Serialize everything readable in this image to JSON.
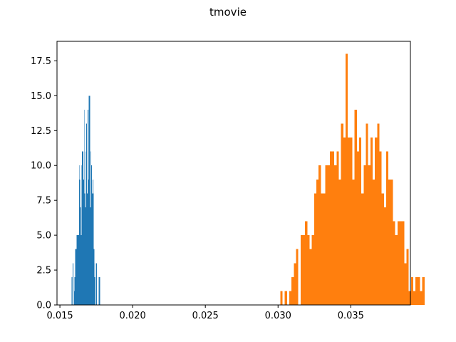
{
  "chart_data": {
    "type": "histogram",
    "title": "tmovie",
    "xlabel": "",
    "ylabel": "",
    "xlim": [
      0.0148,
      0.0391
    ],
    "ylim": [
      0,
      18.9
    ],
    "x_ticks": [
      0.015,
      0.02,
      0.025,
      0.03,
      0.035
    ],
    "x_tick_labels": [
      "0.015",
      "0.020",
      "0.025",
      "0.030",
      "0.035"
    ],
    "y_ticks": [
      0,
      2.5,
      5,
      7.5,
      10,
      12.5,
      15,
      17.5
    ],
    "y_tick_labels": [
      "0.0",
      "2.5",
      "5.0",
      "7.5",
      "10.0",
      "12.5",
      "15.0",
      "17.5"
    ],
    "grid": false,
    "legend": "none",
    "series": [
      {
        "color": "#1f77b4",
        "bin_start": 0.0158,
        "bin_width": 4.25e-05,
        "counts": [
          2,
          0,
          3,
          0,
          1,
          2,
          4,
          4,
          5,
          5,
          5,
          5,
          10,
          9,
          7,
          5,
          10,
          11,
          11,
          9,
          14,
          8,
          7,
          11,
          13,
          8,
          14,
          9,
          15,
          15,
          7,
          11,
          10,
          8,
          9,
          8,
          4,
          2,
          3,
          0,
          3,
          0,
          0,
          0,
          2,
          2
        ]
      },
      {
        "color": "#ff7f0e",
        "bin_start": 0.03015,
        "bin_width": 0.000155,
        "counts": [
          1,
          0,
          1,
          0,
          1,
          2,
          3,
          4,
          0,
          5,
          5,
          6,
          5,
          4,
          5,
          8,
          9,
          10,
          8,
          8,
          10,
          10,
          11,
          11,
          10,
          11,
          9,
          13,
          12,
          18,
          12,
          12,
          9,
          14,
          11,
          12,
          8,
          10,
          13,
          10,
          12,
          9,
          12,
          13,
          11,
          8,
          7,
          11,
          9,
          9,
          6,
          5,
          6,
          6,
          6,
          3,
          4,
          1,
          2,
          1,
          2,
          2,
          1,
          2
        ]
      }
    ]
  }
}
